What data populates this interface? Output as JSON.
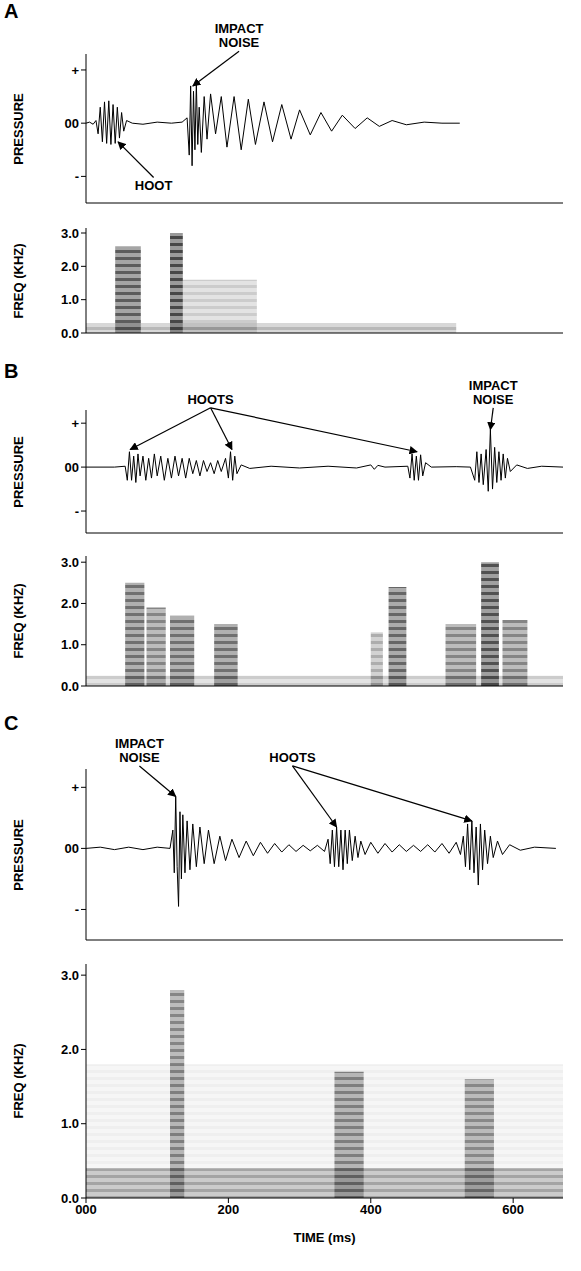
{
  "chart_data": [
    {
      "type": "line",
      "title": "A",
      "ylabel": "PRESSURE",
      "color": "#000000",
      "x": [
        0,
        5,
        10,
        14,
        17,
        20,
        23,
        26,
        29,
        32,
        35,
        38,
        41,
        44,
        47,
        50,
        53,
        57,
        65,
        80,
        100,
        120,
        135,
        142,
        145,
        147,
        149,
        151,
        153,
        155,
        157,
        159,
        162,
        166,
        170,
        175,
        182,
        190,
        198,
        208,
        218,
        228,
        238,
        250,
        262,
        275,
        288,
        300,
        315,
        330,
        345,
        360,
        378,
        395,
        412,
        430,
        450,
        475,
        500,
        525
      ],
      "values": [
        0,
        0.02,
        -0.02,
        0.05,
        -0.2,
        0.3,
        -0.35,
        0.4,
        -0.38,
        0.42,
        -0.4,
        0.35,
        -0.38,
        0.3,
        -0.28,
        0.2,
        -0.15,
        0.05,
        0,
        -0.02,
        0.02,
        0,
        0.02,
        0.1,
        -0.6,
        0.7,
        -0.8,
        0.6,
        -0.5,
        0.75,
        -0.4,
        0.3,
        -0.55,
        0.5,
        -0.3,
        0.55,
        -0.2,
        0.5,
        -0.45,
        0.5,
        -0.5,
        0.45,
        -0.4,
        0.4,
        -0.35,
        0.35,
        -0.3,
        0.25,
        -0.22,
        0.2,
        -0.15,
        0.15,
        -0.1,
        0.1,
        -0.06,
        0.05,
        -0.03,
        0.02,
        0,
        0
      ],
      "xlim": [
        0,
        670
      ],
      "xticks": [
        0,
        200,
        400,
        600
      ],
      "ylim": [
        -1.5,
        1.3
      ],
      "yticks": [
        {
          "value": -1,
          "label": "-"
        },
        {
          "value": 0,
          "label": "00"
        },
        {
          "value": 1,
          "label": "+"
        }
      ],
      "tick_labels": "y",
      "annotations": [
        {
          "text": "HOOT",
          "x": 95,
          "y": -1.02,
          "arrows": [
            [
              45,
              -0.35
            ]
          ]
        },
        {
          "text": "IMPACT NOISE",
          "x": 215,
          "y": 1.35,
          "arrows": [
            [
              150,
              0.7
            ]
          ]
        }
      ]
    },
    {
      "type": "spectrogram",
      "ylabel": "FREQ (KHZ)",
      "color": "#333333",
      "segments": [
        {
          "start": 0,
          "end": 520,
          "fmax": 0.3,
          "intensity": 0.35
        },
        {
          "start": 41,
          "end": 77,
          "fmax": 2.6,
          "intensity": 0.8
        },
        {
          "start": 118,
          "end": 136,
          "fmax": 3.0,
          "intensity": 0.9
        },
        {
          "start": 136,
          "end": 240,
          "fmax": 1.6,
          "intensity": 0.25
        }
      ],
      "xlim": [
        0,
        670
      ],
      "xticks": [
        0,
        200,
        400,
        600
      ],
      "ylim": [
        0,
        3.15
      ],
      "yticks": [
        {
          "value": 0,
          "label": "0.0"
        },
        {
          "value": 1,
          "label": "1.0"
        },
        {
          "value": 2,
          "label": "2.0"
        },
        {
          "value": 3,
          "label": "3.0"
        }
      ],
      "tick_labels": "y"
    },
    {
      "type": "line",
      "title": "B",
      "ylabel": "PRESSURE",
      "color": "#000000",
      "x": [
        0,
        40,
        55,
        58,
        61,
        64,
        67,
        70,
        73,
        76,
        80,
        84,
        88,
        92,
        96,
        100,
        105,
        110,
        115,
        120,
        125,
        130,
        135,
        140,
        145,
        150,
        155,
        160,
        165,
        170,
        175,
        180,
        185,
        190,
        196,
        200,
        203,
        206,
        209,
        212,
        218,
        230,
        260,
        300,
        340,
        380,
        400,
        405,
        410,
        420,
        452,
        455,
        458,
        461,
        464,
        467,
        470,
        473,
        477,
        485,
        520,
        540,
        546,
        549,
        552,
        555,
        558,
        562,
        565,
        568,
        571,
        574,
        577,
        580,
        583,
        586,
        589,
        592,
        596,
        605,
        620,
        640,
        670
      ],
      "values": [
        0,
        0,
        0.02,
        -0.3,
        0.35,
        -0.3,
        0.25,
        -0.35,
        0.3,
        -0.2,
        0.25,
        -0.3,
        0.2,
        -0.25,
        0.3,
        -0.2,
        0.25,
        -0.3,
        0.2,
        -0.25,
        0.25,
        -0.2,
        0.2,
        -0.25,
        0.2,
        -0.15,
        0.15,
        -0.2,
        0.15,
        -0.1,
        0.1,
        -0.15,
        0.15,
        -0.1,
        0.2,
        -0.25,
        0.35,
        -0.3,
        0.25,
        -0.15,
        0.05,
        -0.03,
        0.02,
        -0.02,
        0.02,
        -0.02,
        0.05,
        -0.05,
        0.04,
        0,
        0.02,
        -0.25,
        0.3,
        -0.3,
        0.25,
        -0.3,
        0.28,
        -0.2,
        0.1,
        0,
        0.01,
        0,
        -0.3,
        0.35,
        -0.35,
        0.3,
        -0.4,
        0.4,
        -0.55,
        0.85,
        -0.5,
        0.45,
        -0.35,
        0.35,
        -0.3,
        0.3,
        -0.25,
        0.2,
        -0.1,
        0.05,
        -0.03,
        0.02,
        0
      ],
      "xlim": [
        0,
        670
      ],
      "xticks": [
        0,
        200,
        400,
        600
      ],
      "ylim": [
        -1.5,
        1.3
      ],
      "yticks": [
        {
          "value": -1,
          "label": "-"
        },
        {
          "value": 0,
          "label": "00"
        },
        {
          "value": 1,
          "label": "+"
        }
      ],
      "tick_labels": "y",
      "annotations": [
        {
          "text": "HOOTS",
          "x": 175,
          "y": 1.35,
          "arrows": [
            [
              62,
              0.4
            ],
            [
              205,
              0.4
            ],
            [
              465,
              0.35
            ]
          ]
        },
        {
          "text": "IMPACT NOISE",
          "x": 572,
          "y": 1.35,
          "arrows": [
            [
              568,
              0.85
            ]
          ]
        }
      ]
    },
    {
      "type": "spectrogram",
      "ylabel": "FREQ (KHZ)",
      "color": "#333333",
      "segments": [
        {
          "start": 0,
          "end": 670,
          "fmax": 0.25,
          "intensity": 0.25
        },
        {
          "start": 55,
          "end": 82,
          "fmax": 2.5,
          "intensity": 0.7
        },
        {
          "start": 85,
          "end": 112,
          "fmax": 1.9,
          "intensity": 0.6
        },
        {
          "start": 118,
          "end": 152,
          "fmax": 1.7,
          "intensity": 0.7
        },
        {
          "start": 180,
          "end": 213,
          "fmax": 1.5,
          "intensity": 0.7
        },
        {
          "start": 400,
          "end": 417,
          "fmax": 1.3,
          "intensity": 0.4
        },
        {
          "start": 425,
          "end": 450,
          "fmax": 2.4,
          "intensity": 0.75
        },
        {
          "start": 505,
          "end": 548,
          "fmax": 1.5,
          "intensity": 0.6
        },
        {
          "start": 555,
          "end": 580,
          "fmax": 3.0,
          "intensity": 0.85
        },
        {
          "start": 585,
          "end": 620,
          "fmax": 1.6,
          "intensity": 0.6
        }
      ],
      "xlim": [
        0,
        670
      ],
      "xticks": [
        0,
        200,
        400,
        600
      ],
      "ylim": [
        0,
        3.15
      ],
      "yticks": [
        {
          "value": 0,
          "label": "0.0"
        },
        {
          "value": 1,
          "label": "1.0"
        },
        {
          "value": 2,
          "label": "2.0"
        },
        {
          "value": 3,
          "label": "3.0"
        }
      ],
      "tick_labels": "y"
    },
    {
      "type": "line",
      "title": "C",
      "ylabel": "PRESSURE",
      "color": "#000000",
      "x": [
        0,
        20,
        40,
        60,
        80,
        100,
        118,
        122,
        124,
        126,
        128,
        130,
        132,
        134,
        136,
        139,
        142,
        146,
        150,
        155,
        160,
        166,
        172,
        180,
        188,
        196,
        205,
        215,
        225,
        235,
        245,
        255,
        265,
        275,
        285,
        295,
        305,
        315,
        325,
        335,
        340,
        343,
        346,
        349,
        352,
        355,
        358,
        361,
        364,
        367,
        370,
        374,
        378,
        382,
        386,
        392,
        400,
        410,
        420,
        430,
        440,
        450,
        460,
        470,
        480,
        490,
        500,
        510,
        520,
        526,
        530,
        533,
        536,
        539,
        542,
        545,
        548,
        551,
        554,
        557,
        560,
        564,
        568,
        572,
        578,
        585,
        595,
        610,
        630,
        660
      ],
      "values": [
        0,
        0.02,
        -0.02,
        0.02,
        -0.02,
        0.02,
        0,
        0.3,
        -0.4,
        0.85,
        -0.3,
        -0.95,
        0.6,
        -0.5,
        0.55,
        -0.4,
        0.45,
        -0.35,
        0.4,
        -0.3,
        0.35,
        -0.25,
        0.3,
        -0.25,
        0.2,
        -0.2,
        0.15,
        -0.15,
        0.12,
        -0.12,
        0.1,
        -0.08,
        0.08,
        -0.06,
        0.06,
        -0.05,
        0.05,
        -0.04,
        0.05,
        -0.05,
        0.15,
        -0.25,
        0.3,
        -0.3,
        0.35,
        -0.3,
        0.3,
        -0.35,
        0.3,
        -0.25,
        0.3,
        -0.2,
        0.2,
        -0.15,
        0.12,
        -0.1,
        0.1,
        -0.08,
        0.08,
        -0.06,
        0.06,
        -0.05,
        0.05,
        -0.05,
        0.06,
        -0.06,
        0.08,
        -0.08,
        0.1,
        -0.1,
        0.2,
        -0.3,
        0.4,
        -0.35,
        0.45,
        -0.4,
        0.35,
        -0.6,
        0.4,
        -0.35,
        0.3,
        -0.25,
        0.2,
        -0.15,
        0.12,
        -0.1,
        0.06,
        -0.03,
        0.02,
        0
      ],
      "xlim": [
        0,
        670
      ],
      "xticks": [
        0,
        200,
        400,
        600
      ],
      "ylim": [
        -1.5,
        1.3
      ],
      "yticks": [
        {
          "value": -1,
          "label": "-"
        },
        {
          "value": 0,
          "label": "00"
        },
        {
          "value": 1,
          "label": "+"
        }
      ],
      "tick_labels": "y",
      "annotations": [
        {
          "text": "IMPACT NOISE",
          "x": 75,
          "y": 1.35,
          "arrows": [
            [
              126,
              0.85
            ]
          ]
        },
        {
          "text": "HOOTS",
          "x": 290,
          "y": 1.35,
          "arrows": [
            [
              352,
              0.35
            ],
            [
              542,
              0.45
            ]
          ]
        }
      ]
    },
    {
      "type": "spectrogram",
      "ylabel": "FREQ (KHZ)",
      "xlabel": "TIME (ms)",
      "color": "#333333",
      "segments": [
        {
          "start": 0,
          "end": 670,
          "fmax": 1.8,
          "intensity": 0.08
        },
        {
          "start": 0,
          "end": 670,
          "fmax": 0.4,
          "intensity": 0.4
        },
        {
          "start": 118,
          "end": 138,
          "fmax": 2.8,
          "intensity": 0.6
        },
        {
          "start": 349,
          "end": 390,
          "fmax": 1.7,
          "intensity": 0.6
        },
        {
          "start": 532,
          "end": 573,
          "fmax": 1.6,
          "intensity": 0.55
        }
      ],
      "xlim": [
        0,
        670
      ],
      "xticks": [
        {
          "value": 0,
          "label": "000"
        },
        200,
        400,
        600
      ],
      "ylim": [
        0,
        3.15
      ],
      "yticks": [
        {
          "value": 0,
          "label": "0.0"
        },
        {
          "value": 1,
          "label": "1.0"
        },
        {
          "value": 2,
          "label": "2.0"
        },
        {
          "value": 3,
          "label": "3.0"
        }
      ]
    }
  ]
}
